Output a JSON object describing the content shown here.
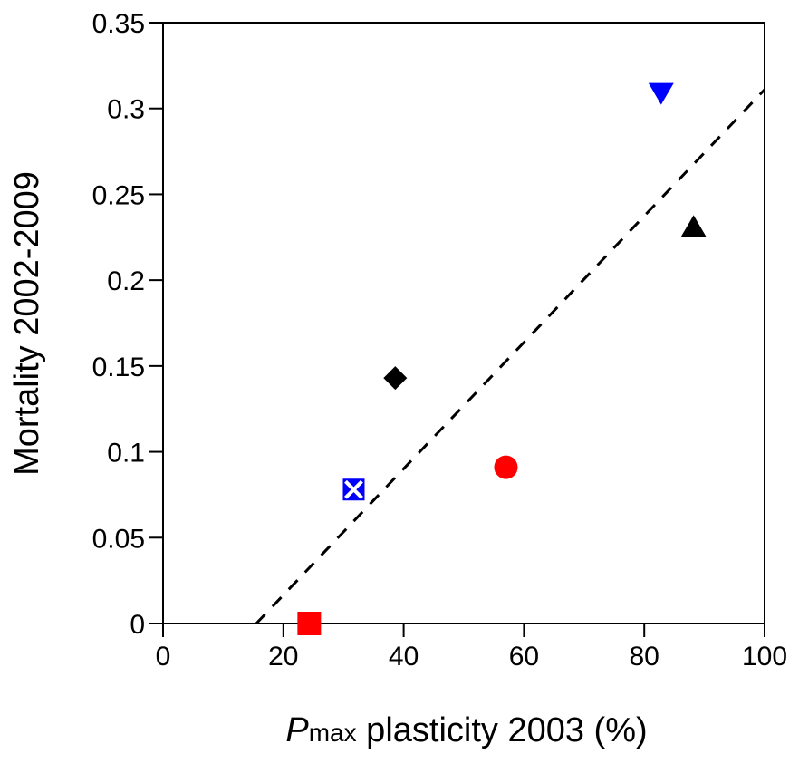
{
  "chart_data": {
    "type": "scatter",
    "xlabel_italic": "P",
    "xlabel_sub": "max",
    "xlabel_rest": " plasticity 2003 (%)",
    "ylabel": "Mortality 2002-2009",
    "xlim": [
      0,
      100
    ],
    "ylim": [
      0,
      0.35
    ],
    "xticks": [
      "0",
      "20",
      "40",
      "60",
      "80",
      "100"
    ],
    "yticks": [
      "0",
      "0.05",
      "0.1",
      "0.15",
      "0.2",
      "0.25",
      "0.3",
      "0.35"
    ],
    "grid": false,
    "points": [
      {
        "x": 24.3,
        "y": 0.0,
        "marker": "square",
        "color": "#ff0000"
      },
      {
        "x": 31.7,
        "y": 0.078,
        "marker": "square-x",
        "color": "#0000ff"
      },
      {
        "x": 38.6,
        "y": 0.143,
        "marker": "diamond",
        "color": "#000000"
      },
      {
        "x": 57.0,
        "y": 0.091,
        "marker": "circle",
        "color": "#ff0000"
      },
      {
        "x": 82.8,
        "y": 0.309,
        "marker": "triangle-down",
        "color": "#0000ff"
      },
      {
        "x": 88.2,
        "y": 0.231,
        "marker": "triangle-up",
        "color": "#000000"
      }
    ],
    "trendline": {
      "style": "dashed",
      "color": "#000000",
      "x": [
        15.5,
        100
      ],
      "y": [
        0,
        0.311
      ]
    }
  }
}
